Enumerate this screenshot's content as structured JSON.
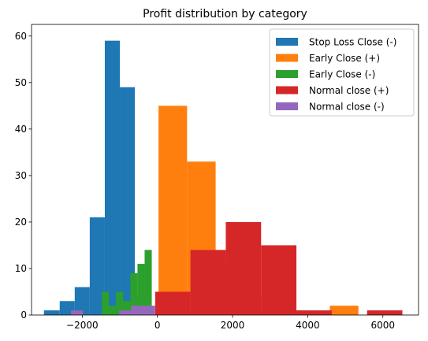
{
  "chart_data": {
    "type": "histogram",
    "title": "Profit distribution by category",
    "xlabel": "",
    "ylabel": "",
    "xlim": [
      -3350,
      6950
    ],
    "ylim": [
      0,
      62.5
    ],
    "x_ticks": [
      -2000,
      0,
      2000,
      4000,
      6000
    ],
    "x_tick_labels": [
      "−2000",
      "0",
      "2000",
      "4000",
      "6000"
    ],
    "y_ticks": [
      0,
      10,
      20,
      30,
      40,
      50,
      60
    ],
    "y_tick_labels": [
      "0",
      "10",
      "20",
      "30",
      "40",
      "50",
      "60"
    ],
    "legend": {
      "position": "upper right"
    },
    "series": [
      {
        "name": "Stop Loss Close (-)",
        "color": "#1f77b4",
        "bins": [
          {
            "x0": -3020,
            "x1": -2600,
            "count": 1
          },
          {
            "x0": -2600,
            "x1": -2200,
            "count": 3
          },
          {
            "x0": -2200,
            "x1": -1800,
            "count": 6
          },
          {
            "x0": -1800,
            "x1": -1400,
            "count": 21
          },
          {
            "x0": -1400,
            "x1": -1000,
            "count": 59
          },
          {
            "x0": -1000,
            "x1": -600,
            "count": 49
          },
          {
            "x0": -600,
            "x1": -200,
            "count": 4
          }
        ]
      },
      {
        "name": "Early Close (+)",
        "color": "#ff7f0e",
        "bins": [
          {
            "x0": 30,
            "x1": 790,
            "count": 45
          },
          {
            "x0": 790,
            "x1": 1550,
            "count": 33
          },
          {
            "x0": 1550,
            "x1": 2310,
            "count": 11
          },
          {
            "x0": 2310,
            "x1": 3070,
            "count": 4
          },
          {
            "x0": 3070,
            "x1": 3830,
            "count": 1
          },
          {
            "x0": 3830,
            "x1": 4590,
            "count": 0
          },
          {
            "x0": 4590,
            "x1": 5350,
            "count": 2
          }
        ]
      },
      {
        "name": "Early Close (-)",
        "color": "#2ca02c",
        "bins": [
          {
            "x0": -1480,
            "x1": -1290,
            "count": 5
          },
          {
            "x0": -1290,
            "x1": -1100,
            "count": 2
          },
          {
            "x0": -1100,
            "x1": -910,
            "count": 5
          },
          {
            "x0": -910,
            "x1": -720,
            "count": 3
          },
          {
            "x0": -720,
            "x1": -530,
            "count": 9
          },
          {
            "x0": -530,
            "x1": -340,
            "count": 11
          },
          {
            "x0": -340,
            "x1": -150,
            "count": 14
          }
        ]
      },
      {
        "name": "Normal close (+)",
        "color": "#d62728",
        "bins": [
          {
            "x0": -60,
            "x1": 880,
            "count": 5
          },
          {
            "x0": 880,
            "x1": 1820,
            "count": 14
          },
          {
            "x0": 1820,
            "x1": 2760,
            "count": 20
          },
          {
            "x0": 2760,
            "x1": 3700,
            "count": 15
          },
          {
            "x0": 3700,
            "x1": 4640,
            "count": 1
          },
          {
            "x0": 4640,
            "x1": 5580,
            "count": 0
          },
          {
            "x0": 5580,
            "x1": 6520,
            "count": 1
          }
        ]
      },
      {
        "name": "Normal close (-)",
        "color": "#9467bd",
        "bins": [
          {
            "x0": -2300,
            "x1": -1980,
            "count": 1
          },
          {
            "x0": -1980,
            "x1": -1660,
            "count": 0
          },
          {
            "x0": -1660,
            "x1": -1340,
            "count": 0
          },
          {
            "x0": -1340,
            "x1": -1020,
            "count": 0
          },
          {
            "x0": -1020,
            "x1": -700,
            "count": 1
          },
          {
            "x0": -700,
            "x1": -380,
            "count": 2
          },
          {
            "x0": -380,
            "x1": -60,
            "count": 2
          }
        ]
      }
    ]
  }
}
